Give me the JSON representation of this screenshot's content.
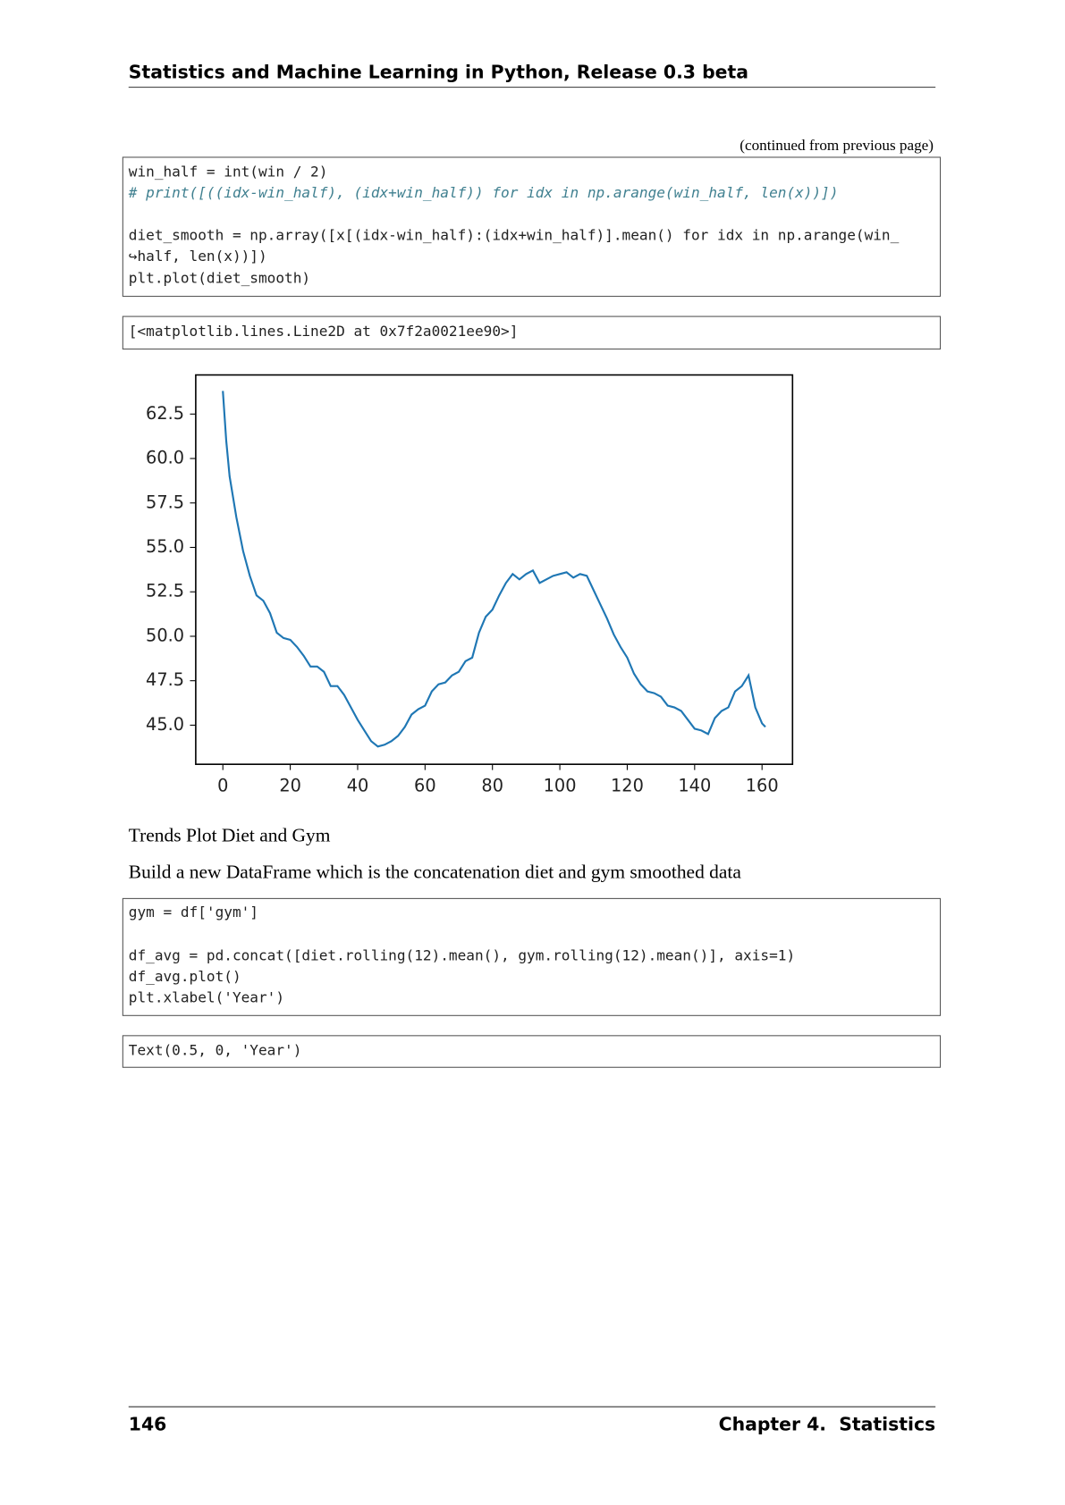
{
  "header": {
    "title": "Statistics and Machine Learning in Python, Release 0.3 beta"
  },
  "continued": "(continued from previous page)",
  "code_blocks": [
    {
      "lines": [
        "win_half = int(win / 2)",
        "# print([((idx-win_half), (idx+win_half)) for idx in np.arange(win_half, len(x))])",
        "diet_smooth = np.array([x[(idx-win_half):(idx+win_half)].mean() for idx in np.arange(win_",
        "↪half, len(x))])",
        "plt.plot(diet_smooth)"
      ]
    },
    {
      "lines": [
        "[<matplotlib.lines.Line2D at 0x7f2a0021ee90>]"
      ]
    },
    {
      "lines": [
        "gym = df['gym']",
        "df_avg = pd.concat([diet.rolling(12).mean(), gym.rolling(12).mean()], axis=1)",
        "df_avg.plot()",
        "plt.xlabel('Year')"
      ]
    },
    {
      "lines": [
        "Text(0.5, 0, 'Year')"
      ]
    }
  ],
  "chart_data": {
    "type": "line",
    "color": "#1f77b4",
    "x": [
      0,
      1,
      2,
      4,
      6,
      8,
      10,
      12,
      14,
      16,
      18,
      20,
      22,
      24,
      26,
      28,
      30,
      32,
      34,
      36,
      38,
      40,
      42,
      44,
      46,
      48,
      50,
      52,
      54,
      56,
      58,
      60,
      62,
      64,
      66,
      68,
      70,
      72,
      74,
      76,
      78,
      80,
      82,
      84,
      86,
      88,
      90,
      92,
      94,
      96,
      98,
      100,
      102,
      104,
      106,
      108,
      110,
      112,
      114,
      116,
      118,
      120,
      122,
      124,
      126,
      128,
      130,
      132,
      134,
      136,
      138,
      140,
      142,
      144,
      146,
      148,
      150,
      152,
      154,
      156,
      158,
      160,
      161
    ],
    "values": [
      63.8,
      61.0,
      59.0,
      56.7,
      54.8,
      53.4,
      52.3,
      52.0,
      51.3,
      50.2,
      49.9,
      49.8,
      49.4,
      48.9,
      48.3,
      48.3,
      48.0,
      47.2,
      47.2,
      46.7,
      46.0,
      45.3,
      44.7,
      44.1,
      43.8,
      43.9,
      44.1,
      44.4,
      44.9,
      45.6,
      45.9,
      46.1,
      46.9,
      47.3,
      47.4,
      47.8,
      48.0,
      48.6,
      48.8,
      50.2,
      51.1,
      51.5,
      52.3,
      53.0,
      53.5,
      53.2,
      53.5,
      53.7,
      53.0,
      53.2,
      53.4,
      53.5,
      53.6,
      53.3,
      53.5,
      53.4,
      52.6,
      51.8,
      51.0,
      50.1,
      49.4,
      48.8,
      47.9,
      47.3,
      46.9,
      46.8,
      46.6,
      46.1,
      46.0,
      45.8,
      45.3,
      44.8,
      44.7,
      44.5,
      45.4,
      45.8,
      46.0,
      46.9,
      47.2,
      47.8,
      46.0,
      45.1,
      44.9
    ],
    "xlim": [
      -8.05,
      169.05
    ],
    "ylim": [
      42.8,
      64.7
    ],
    "xticks": [
      0,
      20,
      40,
      60,
      80,
      100,
      120,
      140,
      160
    ],
    "yticks": [
      {
        "value": 45,
        "label": "45.0"
      },
      {
        "value": 47.5,
        "label": "47.5"
      },
      {
        "value": 50,
        "label": "50.0"
      },
      {
        "value": 52.5,
        "label": "52.5"
      },
      {
        "value": 55,
        "label": "55.0"
      },
      {
        "value": 57.5,
        "label": "57.5"
      },
      {
        "value": 60,
        "label": "60.0"
      },
      {
        "value": 62.5,
        "label": "62.5"
      }
    ]
  },
  "paragraphs": [
    "Trends Plot Diet and Gym",
    "Build a new DataFrame which is the concatenation diet and gym smoothed data"
  ],
  "footer": {
    "page": "146",
    "chapter": "Chapter 4.  Statistics"
  }
}
